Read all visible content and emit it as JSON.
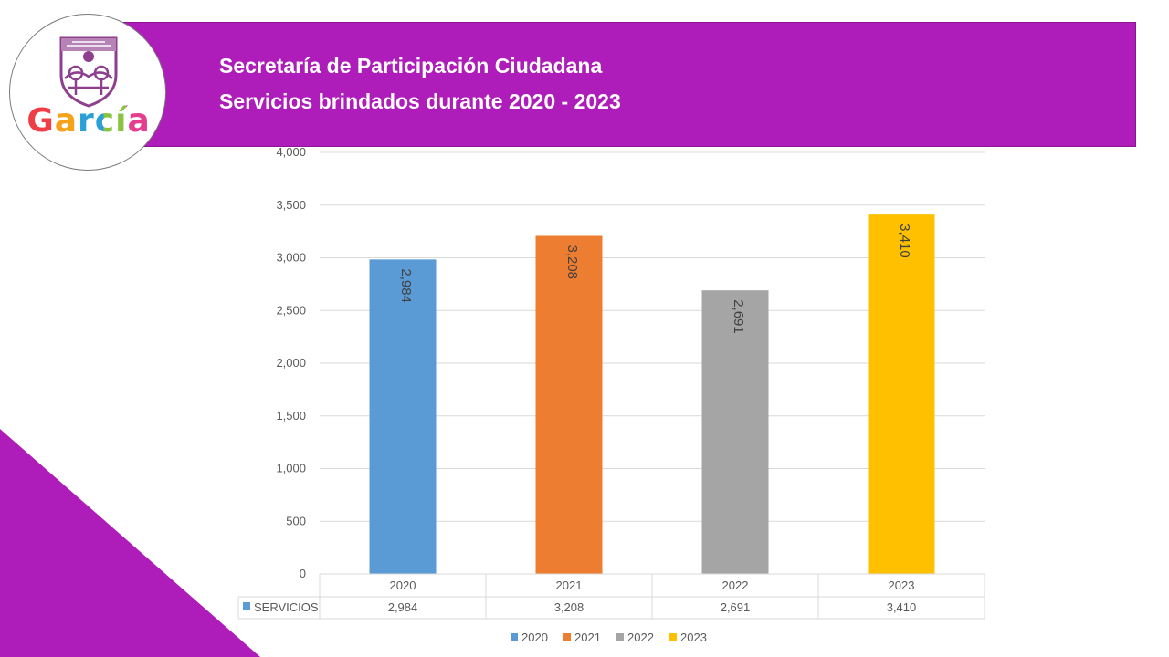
{
  "header": {
    "title_line1": "Secretaría de Participación Ciudadana",
    "title_line2": "Servicios brindados durante 2020 - 2023",
    "logo_text": "García"
  },
  "colors": {
    "banner": "#ae1cb9",
    "corner": "#ae1cb9",
    "series": [
      "#5b9bd5",
      "#ed7d31",
      "#a5a5a5",
      "#ffc000"
    ]
  },
  "chart_data": {
    "type": "bar",
    "title": "Servicios brindados durante 2020 - 2023",
    "categories": [
      "2020",
      "2021",
      "2022",
      "2023"
    ],
    "series": [
      {
        "name": "SERVICIOS",
        "values": [
          2984,
          3208,
          2691,
          3410
        ]
      }
    ],
    "value_labels": [
      "2,984",
      "3,208",
      "2,691",
      "3,410"
    ],
    "y_ticks": [
      0,
      500,
      1000,
      1500,
      2000,
      2500,
      3000,
      3500,
      4000
    ],
    "y_tick_labels": [
      "0",
      "500",
      "1,000",
      "1,500",
      "2,000",
      "2,500",
      "3,000",
      "3,500",
      "4,000"
    ],
    "ylim": [
      0,
      4000
    ],
    "grid": true,
    "data_table": {
      "row_label": "SERVICIOS",
      "values": [
        "2,984",
        "3,208",
        "2,691",
        "3,410"
      ]
    },
    "legend": {
      "position": "bottom",
      "entries": [
        "2020",
        "2021",
        "2022",
        "2023"
      ]
    }
  }
}
